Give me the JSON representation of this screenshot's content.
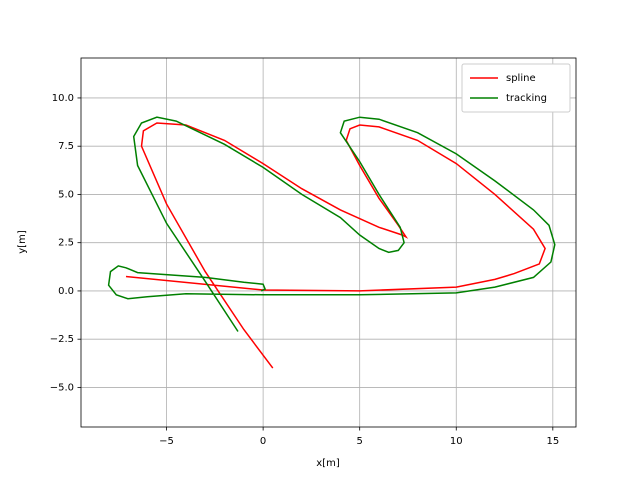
{
  "chart_data": {
    "type": "line",
    "xlabel": "x[m]",
    "ylabel": "y[m]",
    "xlim": [
      -9.43,
      16.2
    ],
    "ylim": [
      -7.05,
      12.07
    ],
    "xticks": [
      {
        "value": -5,
        "label": "−5"
      },
      0,
      5,
      10,
      15
    ],
    "yticks": [
      {
        "value": -5,
        "label": "−5.0"
      },
      {
        "value": -2.5,
        "label": "−2.5"
      },
      {
        "value": 0,
        "label": "0.0"
      },
      2.5,
      {
        "value": 5,
        "label": "5.0"
      },
      7.5,
      {
        "value": 10,
        "label": "10.0"
      }
    ],
    "grid": true,
    "legend": "upper right",
    "series": [
      {
        "name": "spline",
        "color": "#ff0000",
        "x": [
          0.5,
          -1,
          -3,
          -5,
          -6.3,
          -6.2,
          -5.5,
          -4,
          -2,
          0,
          2,
          4,
          6,
          7.2,
          7.4,
          7,
          6,
          5,
          4.3,
          4.5,
          5,
          6,
          8,
          10,
          12,
          14,
          14.6,
          14.3,
          13,
          12,
          10,
          5,
          0,
          -7.1
        ],
        "values": [
          -4,
          -2,
          1,
          4.5,
          7.5,
          8.3,
          8.7,
          8.6,
          7.8,
          6.6,
          5.3,
          4.2,
          3.3,
          2.9,
          2.8,
          3.4,
          4.8,
          6.5,
          7.8,
          8.4,
          8.6,
          8.5,
          7.8,
          6.6,
          5,
          3.2,
          2.2,
          1.4,
          0.9,
          0.6,
          0.2,
          0,
          0.05,
          0.75
        ]
      },
      {
        "name": "tracking",
        "color": "#008000",
        "x": [
          -1.3,
          -3,
          -5,
          -6.5,
          -6.7,
          -6.3,
          -5.5,
          -4.5,
          -2,
          0,
          2,
          4,
          5,
          6,
          6.5,
          7,
          7.3,
          7.1,
          6,
          5,
          4,
          4.2,
          5,
          6,
          8,
          10,
          12,
          14,
          14.8,
          15.1,
          14.9,
          14,
          12,
          10,
          5,
          0,
          -4,
          -6,
          -7,
          -7.6,
          -8,
          -7.9,
          -7.5,
          -7.1,
          -6.5,
          -3,
          -1,
          0,
          0.1,
          -0.1
        ],
        "values": [
          -2.1,
          0.5,
          3.5,
          6.5,
          8,
          8.7,
          9,
          8.8,
          7.6,
          6.4,
          5,
          3.8,
          2.9,
          2.2,
          2,
          2.1,
          2.5,
          3.3,
          5,
          6.7,
          8.2,
          8.8,
          9,
          8.9,
          8.2,
          7.1,
          5.7,
          4.2,
          3.4,
          2.4,
          1.5,
          0.7,
          0.2,
          -0.1,
          -0.2,
          -0.2,
          -0.15,
          -0.3,
          -0.4,
          -0.2,
          0.3,
          1,
          1.3,
          1.2,
          0.95,
          0.7,
          0.45,
          0.35,
          0.1,
          0
        ]
      }
    ]
  }
}
